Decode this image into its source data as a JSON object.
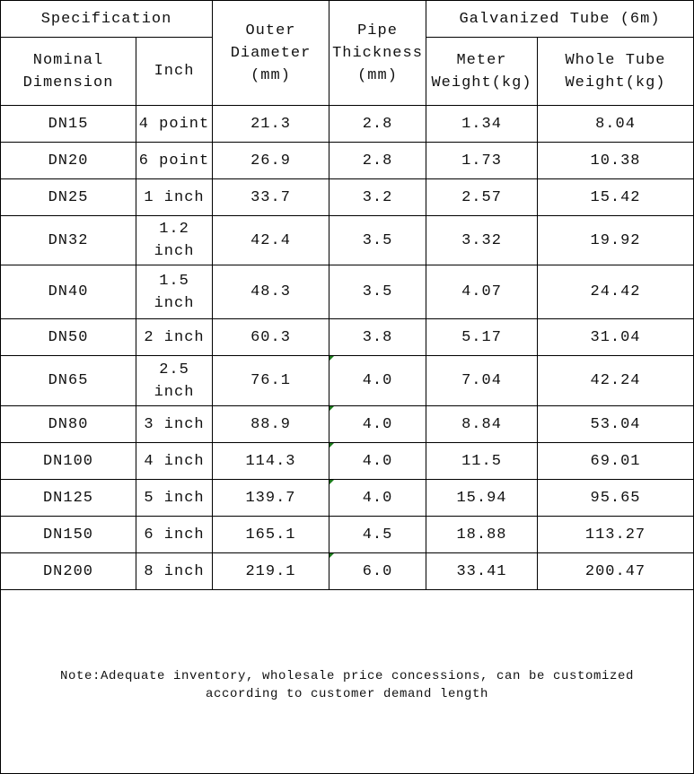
{
  "header": {
    "specification": "Specification",
    "outer_diameter": [
      "Outer",
      "Diameter",
      "(mm)"
    ],
    "pipe_thickness": [
      "Pipe",
      "Thickness",
      "(mm)"
    ],
    "galvanized_tube": "Galvanized Tube (6m)",
    "nominal_dimension": [
      "Nominal",
      "Dimension"
    ],
    "inch": "Inch",
    "meter_weight": [
      "Meter",
      "Weight(kg)"
    ],
    "whole_tube_weight": [
      "Whole Tube",
      "Weight(kg)"
    ]
  },
  "rows": [
    {
      "dn": "DN15",
      "inch": [
        "4 point"
      ],
      "od": "21.3",
      "thickness": "2.8",
      "meter_weight": "1.34",
      "whole_weight": "8.04",
      "marker": false
    },
    {
      "dn": "DN20",
      "inch": [
        "6 point"
      ],
      "od": "26.9",
      "thickness": "2.8",
      "meter_weight": "1.73",
      "whole_weight": "10.38",
      "marker": false
    },
    {
      "dn": "DN25",
      "inch": [
        "1 inch"
      ],
      "od": "33.7",
      "thickness": "3.2",
      "meter_weight": "2.57",
      "whole_weight": "15.42",
      "marker": false
    },
    {
      "dn": "DN32",
      "inch": [
        "1.2",
        "inch"
      ],
      "od": "42.4",
      "thickness": "3.5",
      "meter_weight": "3.32",
      "whole_weight": "19.92",
      "marker": false
    },
    {
      "dn": "DN40",
      "inch": [
        "1.5",
        "inch"
      ],
      "od": "48.3",
      "thickness": "3.5",
      "meter_weight": "4.07",
      "whole_weight": "24.42",
      "marker": false
    },
    {
      "dn": "DN50",
      "inch": [
        "2 inch"
      ],
      "od": "60.3",
      "thickness": "3.8",
      "meter_weight": "5.17",
      "whole_weight": "31.04",
      "marker": false
    },
    {
      "dn": "DN65",
      "inch": [
        "2.5",
        "inch"
      ],
      "od": "76.1",
      "thickness": "4.0",
      "meter_weight": "7.04",
      "whole_weight": "42.24",
      "marker": true
    },
    {
      "dn": "DN80",
      "inch": [
        "3 inch"
      ],
      "od": "88.9",
      "thickness": "4.0",
      "meter_weight": "8.84",
      "whole_weight": "53.04",
      "marker": true
    },
    {
      "dn": "DN100",
      "inch": [
        "4 inch"
      ],
      "od": "114.3",
      "thickness": "4.0",
      "meter_weight": "11.5",
      "whole_weight": "69.01",
      "marker": true
    },
    {
      "dn": "DN125",
      "inch": [
        "5 inch"
      ],
      "od": "139.7",
      "thickness": "4.0",
      "meter_weight": "15.94",
      "whole_weight": "95.65",
      "marker": true
    },
    {
      "dn": "DN150",
      "inch": [
        "6 inch"
      ],
      "od": "165.1",
      "thickness": "4.5",
      "meter_weight": "18.88",
      "whole_weight": "113.27",
      "marker": false
    },
    {
      "dn": "DN200",
      "inch": [
        "8 inch"
      ],
      "od": "219.1",
      "thickness": "6.0",
      "meter_weight": "33.41",
      "whole_weight": "200.47",
      "marker": true
    }
  ],
  "note": [
    "Note:Adequate inventory, wholesale price concessions, can be customized",
    "according to customer demand length"
  ],
  "colors": {
    "border": "#000000",
    "text": "#111111",
    "error_marker": "#1a7a1a"
  }
}
